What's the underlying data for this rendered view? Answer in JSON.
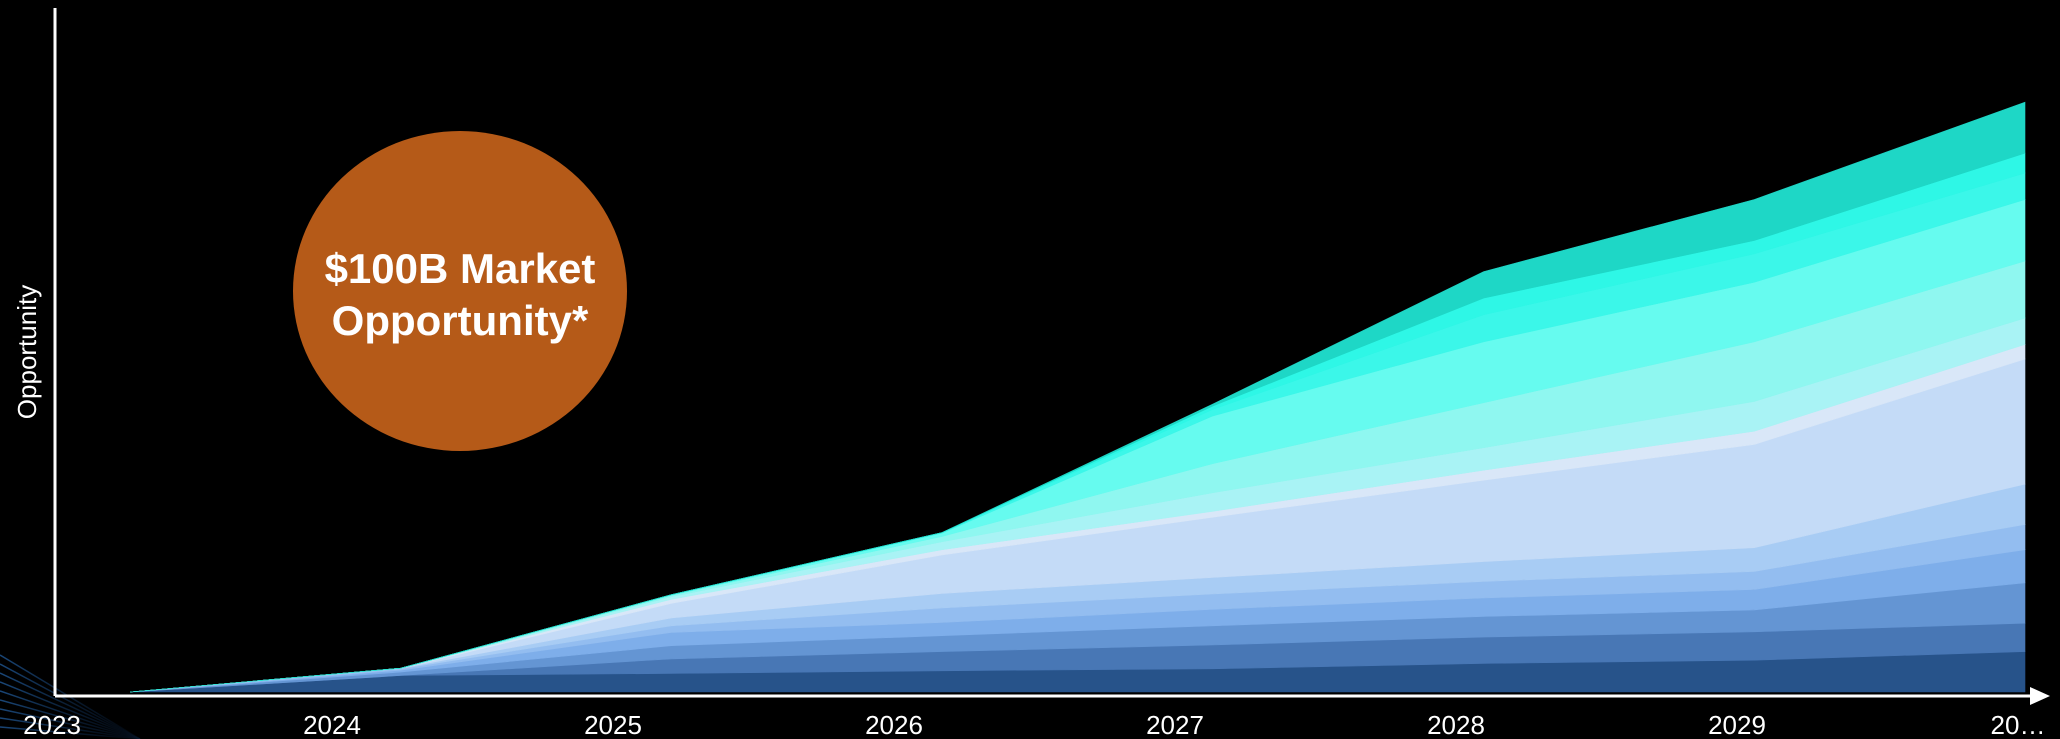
{
  "chart_data": {
    "type": "area",
    "stacked": true,
    "x": [
      "2023",
      "2024",
      "2025",
      "2026",
      "2027",
      "2028",
      "2029",
      "20…"
    ],
    "xlabel": "",
    "ylabel": "Opportunity",
    "ylim": [
      0,
      100
    ],
    "grid": false,
    "legend": "none",
    "series": [
      {
        "color": "#27538a",
        "values": [
          0,
          2.5,
          2.8,
          3.2,
          3.5,
          4.3,
          4.8,
          6.1
        ]
      },
      {
        "color": "#4877b5",
        "values": [
          0,
          0,
          2.2,
          2.9,
          3.6,
          4.0,
          4.3,
          4.3
        ]
      },
      {
        "color": "#6495d3",
        "values": [
          0,
          0.5,
          2.0,
          2.4,
          2.9,
          3.1,
          3.3,
          6.1
        ]
      },
      {
        "color": "#7eaeea",
        "values": [
          0,
          0.3,
          2.0,
          2.0,
          2.5,
          2.8,
          3.1,
          5.0
        ]
      },
      {
        "color": "#93bdf0",
        "values": [
          0,
          0.2,
          1.0,
          2.2,
          2.3,
          2.5,
          2.7,
          3.8
        ]
      },
      {
        "color": "#a8ccf4",
        "values": [
          0,
          0.1,
          1.2,
          2.2,
          2.5,
          3.0,
          3.6,
          6.1
        ]
      },
      {
        "color": "#c4dbf7",
        "values": [
          0,
          0,
          2.2,
          5.8,
          9.1,
          12.3,
          15.6,
          18.9
        ]
      },
      {
        "color": "#d9e7f8",
        "values": [
          0,
          0,
          0.6,
          0.8,
          0.9,
          1.5,
          2.0,
          2.2
        ]
      },
      {
        "color": "#a9f3f5",
        "values": [
          0,
          0,
          0.4,
          1.2,
          2.8,
          3.4,
          4.5,
          4.0
        ]
      },
      {
        "color": "#8ff7f0",
        "values": [
          0,
          0,
          0.2,
          0.8,
          4.4,
          6.8,
          9.0,
          8.6
        ]
      },
      {
        "color": "#66fbef",
        "values": [
          0,
          0,
          0.1,
          0.5,
          7.2,
          9.2,
          9.0,
          9.3
        ]
      },
      {
        "color": "#3bf7e9",
        "values": [
          0,
          0,
          0,
          0.1,
          1.0,
          4.1,
          4.3,
          4.0
        ]
      },
      {
        "color": "#2ef7e6",
        "values": [
          0,
          0,
          0,
          0,
          0.5,
          2.5,
          2.0,
          3.0
        ]
      },
      {
        "color": "#1ed7c6",
        "values": [
          0,
          0,
          0,
          0,
          0.3,
          4.0,
          6.2,
          7.7
        ]
      }
    ],
    "annotation": {
      "lines": [
        "$100B Market",
        "Opportunity*"
      ],
      "color": "#b55a18"
    }
  }
}
